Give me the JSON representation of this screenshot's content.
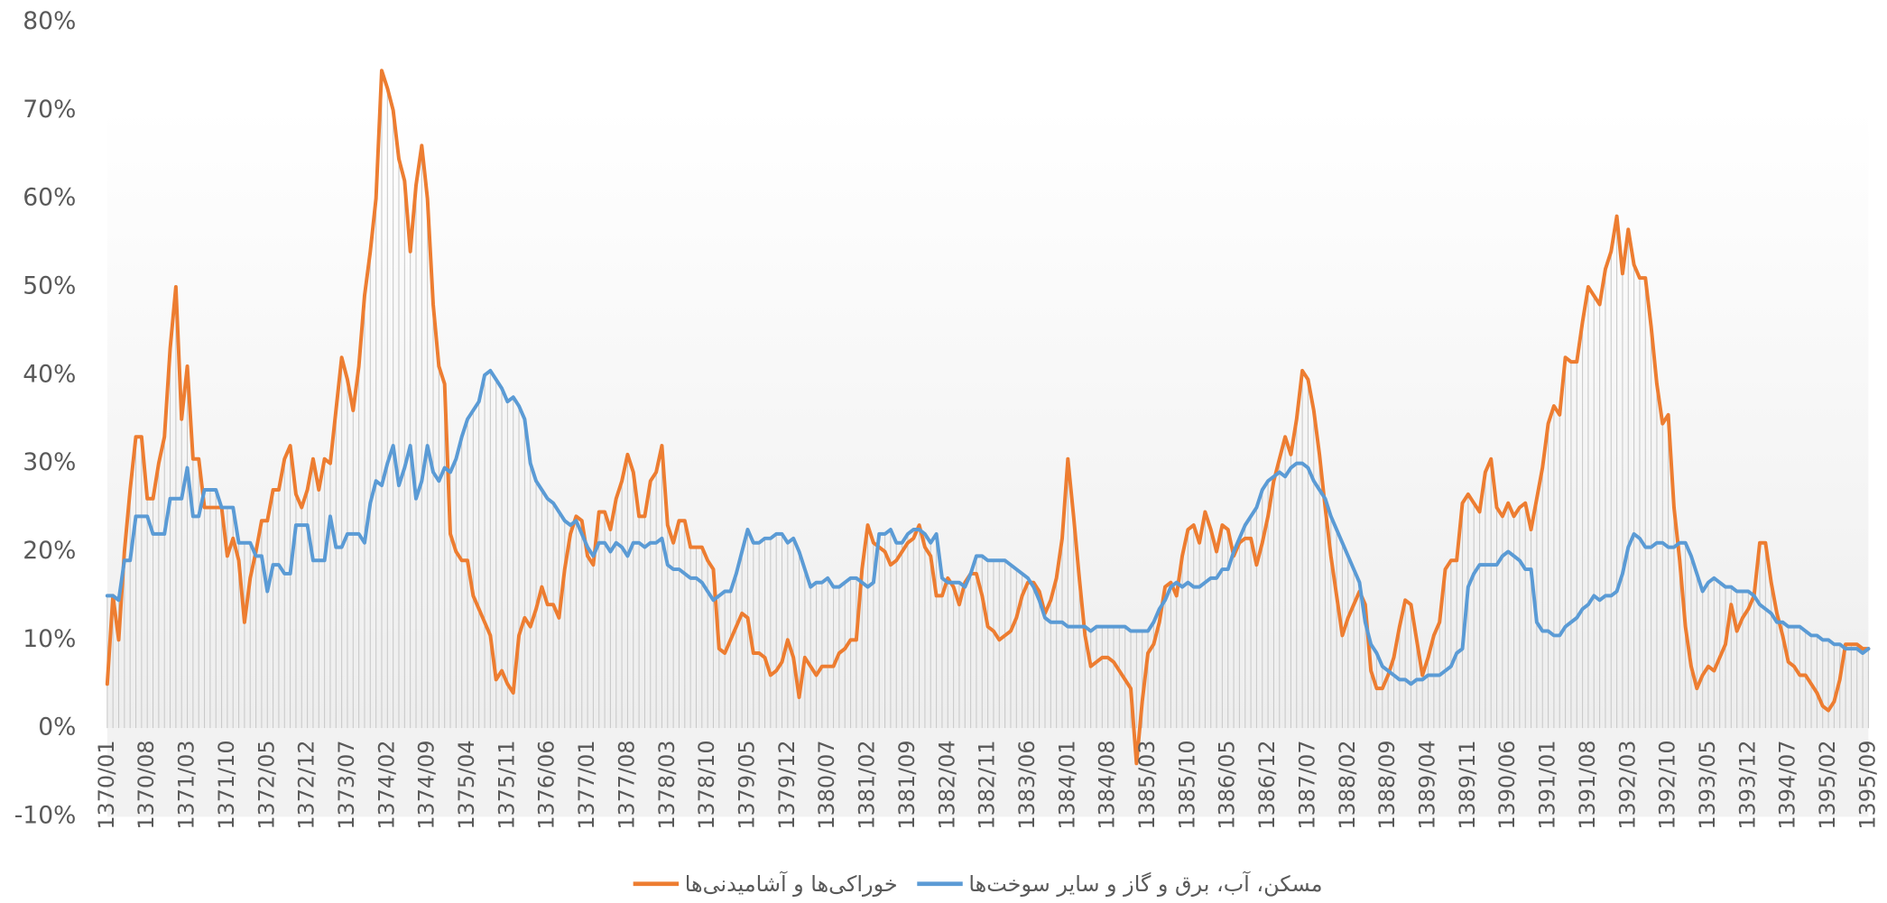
{
  "chart_data": {
    "type": "line",
    "categories": [
      "1370/01",
      null,
      null,
      null,
      null,
      null,
      null,
      "1370/08",
      null,
      null,
      null,
      null,
      null,
      null,
      "1371/03",
      null,
      null,
      null,
      null,
      null,
      null,
      "1371/10",
      null,
      null,
      null,
      null,
      null,
      null,
      "1372/05",
      null,
      null,
      null,
      null,
      null,
      null,
      "1372/12",
      null,
      null,
      null,
      null,
      null,
      null,
      "1373/07",
      null,
      null,
      null,
      null,
      null,
      null,
      "1374/02",
      null,
      null,
      null,
      null,
      null,
      null,
      "1374/09",
      null,
      null,
      null,
      null,
      null,
      null,
      "1375/04",
      null,
      null,
      null,
      null,
      null,
      null,
      "1375/11",
      null,
      null,
      null,
      null,
      null,
      null,
      "1376/06",
      null,
      null,
      null,
      null,
      null,
      null,
      "1377/01",
      null,
      null,
      null,
      null,
      null,
      null,
      "1377/08",
      null,
      null,
      null,
      null,
      null,
      null,
      "1378/03",
      null,
      null,
      null,
      null,
      null,
      null,
      "1378/10",
      null,
      null,
      null,
      null,
      null,
      null,
      "1379/05",
      null,
      null,
      null,
      null,
      null,
      null,
      "1379/12",
      null,
      null,
      null,
      null,
      null,
      null,
      "1380/07",
      null,
      null,
      null,
      null,
      null,
      null,
      "1381/02",
      null,
      null,
      null,
      null,
      null,
      null,
      "1381/09",
      null,
      null,
      null,
      null,
      null,
      null,
      "1382/04",
      null,
      null,
      null,
      null,
      null,
      null,
      "1382/11",
      null,
      null,
      null,
      null,
      null,
      null,
      "1383/06",
      null,
      null,
      null,
      null,
      null,
      null,
      "1384/01",
      null,
      null,
      null,
      null,
      null,
      null,
      "1384/08",
      null,
      null,
      null,
      null,
      null,
      null,
      "1385/03",
      null,
      null,
      null,
      null,
      null,
      null,
      "1385/10",
      null,
      null,
      null,
      null,
      null,
      null,
      "1386/05",
      null,
      null,
      null,
      null,
      null,
      null,
      "1386/12",
      null,
      null,
      null,
      null,
      null,
      null,
      "1387/07",
      null,
      null,
      null,
      null,
      null,
      null,
      "1388/02",
      null,
      null,
      null,
      null,
      null,
      null,
      "1388/09",
      null,
      null,
      null,
      null,
      null,
      null,
      "1389/04",
      null,
      null,
      null,
      null,
      null,
      null,
      "1389/11",
      null,
      null,
      null,
      null,
      null,
      null,
      "1390/06",
      null,
      null,
      null,
      null,
      null,
      null,
      "1391/01",
      null,
      null,
      null,
      null,
      null,
      null,
      "1391/08",
      null,
      null,
      null,
      null,
      null,
      null,
      "1392/03",
      null,
      null,
      null,
      null,
      null,
      null,
      "1392/10",
      null,
      null,
      null,
      null,
      null,
      null,
      "1393/05",
      null,
      null,
      null,
      null,
      null,
      null,
      "1393/12",
      null,
      null,
      null,
      null,
      null,
      null,
      "1394/07",
      null,
      null,
      null,
      null,
      null,
      null,
      "1395/02",
      null,
      null,
      null,
      null,
      null,
      null,
      "1395/09"
    ],
    "series": [
      {
        "name": "خوراکی‌ها و آشامیدنی‌ها",
        "color": "#ed7d31",
        "values": [
          5,
          15,
          10,
          20,
          27,
          33,
          33,
          26,
          26,
          30,
          33,
          43,
          50,
          35,
          41,
          30.5,
          30.5,
          25,
          25,
          25,
          25,
          19.5,
          21.5,
          19,
          12,
          17,
          20,
          23.5,
          23.5,
          27,
          27,
          30.5,
          32,
          26.5,
          25,
          27,
          30.5,
          27,
          30.5,
          30,
          36,
          42,
          39.5,
          36,
          41,
          49,
          54,
          60,
          74.5,
          72.5,
          70,
          64.5,
          62,
          54,
          61.5,
          66,
          60,
          48,
          41,
          39,
          22,
          20,
          19,
          19,
          15,
          13.5,
          12,
          10.5,
          5.5,
          6.5,
          5,
          4,
          10.5,
          12.5,
          11.5,
          13.5,
          16,
          14,
          14,
          12.5,
          18,
          22,
          24,
          23.5,
          19.5,
          18.5,
          24.5,
          24.5,
          22.5,
          26,
          28,
          31,
          29,
          24,
          24,
          28,
          29,
          32,
          23,
          21,
          23.5,
          23.5,
          20.5,
          20.5,
          20.5,
          19,
          18,
          9,
          8.5,
          10,
          11.5,
          13,
          12.5,
          8.5,
          8.5,
          8,
          6,
          6.5,
          7.5,
          10,
          8,
          3.5,
          8,
          7,
          6,
          7,
          7,
          7,
          8.5,
          9,
          10,
          10,
          18,
          23,
          21,
          20.5,
          20,
          18.5,
          19,
          20,
          21,
          21.5,
          23,
          20.5,
          19.5,
          15,
          15,
          17,
          16,
          14,
          16.5,
          17.5,
          17.5,
          15,
          11.5,
          11,
          10,
          10.5,
          11,
          12.5,
          15,
          16.5,
          16.5,
          15.5,
          13,
          14.5,
          17,
          21.5,
          30.5,
          24,
          17,
          10.5,
          7,
          7.5,
          8,
          8,
          7.5,
          6.5,
          5.5,
          4.5,
          -4,
          3,
          8.5,
          9.5,
          12,
          16,
          16.5,
          15,
          19.5,
          22.5,
          23,
          21,
          24.5,
          22.5,
          20,
          23,
          22.5,
          19.5,
          21,
          21.5,
          21.5,
          18.5,
          21,
          24,
          28,
          30.5,
          33,
          31,
          35,
          40.5,
          39.5,
          36,
          31,
          25,
          19.5,
          15,
          10.5,
          12.5,
          14,
          15.5,
          14,
          6.5,
          4.5,
          4.5,
          6,
          8,
          11.5,
          14.5,
          14,
          10,
          6,
          8,
          10.5,
          12,
          18,
          19,
          19,
          25.5,
          26.5,
          25.5,
          24.5,
          29,
          30.5,
          25,
          24,
          25.5,
          24,
          25,
          25.5,
          22.5,
          26,
          29.5,
          34.5,
          36.5,
          35.5,
          42,
          41.5,
          41.5,
          46,
          50,
          49,
          48,
          52,
          54,
          58,
          51.5,
          56.5,
          52.5,
          51,
          51,
          45.5,
          39,
          34.5,
          35.5,
          25,
          19,
          11.5,
          7,
          4.5,
          6,
          7,
          6.5,
          8,
          9.5,
          14,
          11,
          12.5,
          13.5,
          15,
          21,
          21,
          16.5,
          13,
          10.5,
          7.5,
          7,
          6,
          6,
          5,
          4,
          2.5,
          2,
          3,
          5.5,
          9.5,
          9.5,
          9.5,
          9,
          9
        ]
      },
      {
        "name": "مسکن، آب، برق و گاز و سایر سوخت‌ها",
        "color": "#5b9bd5",
        "values": [
          15,
          15,
          14.5,
          19,
          19,
          24,
          24,
          24,
          22,
          22,
          22,
          26,
          26,
          26,
          29.5,
          24,
          24,
          27,
          27,
          27,
          25,
          25,
          25,
          21,
          21,
          21,
          19.5,
          19.5,
          15.5,
          18.5,
          18.5,
          17.5,
          17.5,
          23,
          23,
          23,
          19,
          19,
          19,
          24,
          20.5,
          20.5,
          22,
          22,
          22,
          21,
          25.5,
          28,
          27.5,
          30,
          32,
          27.5,
          29.5,
          32,
          26,
          28,
          32,
          29,
          28,
          29.5,
          29,
          30.5,
          33,
          35,
          36,
          37,
          40,
          40.5,
          39.5,
          38.5,
          37,
          37.5,
          36.5,
          35,
          30,
          28,
          27,
          26,
          25.5,
          24.5,
          23.5,
          23,
          23.5,
          22,
          20.5,
          19.5,
          21,
          21,
          20,
          21,
          20.5,
          19.5,
          21,
          21,
          20.5,
          21,
          21,
          21.5,
          18.5,
          18,
          18,
          17.5,
          17,
          17,
          16.5,
          15.5,
          14.5,
          15,
          15.5,
          15.5,
          17.5,
          20,
          22.5,
          21,
          21,
          21.5,
          21.5,
          22,
          22,
          21,
          21.5,
          20,
          18,
          16,
          16.5,
          16.5,
          17,
          16,
          16,
          16.5,
          17,
          17,
          16.5,
          16,
          16.5,
          22,
          22,
          22.5,
          21,
          21,
          22,
          22.5,
          22.5,
          22,
          21,
          22,
          17,
          16.5,
          16.5,
          16.5,
          16,
          17.5,
          19.5,
          19.5,
          19,
          19,
          19,
          19,
          18.5,
          18,
          17.5,
          17,
          16,
          14.5,
          12.5,
          12,
          12,
          12,
          11.5,
          11.5,
          11.5,
          11.5,
          11,
          11.5,
          11.5,
          11.5,
          11.5,
          11.5,
          11.5,
          11,
          11,
          11,
          11,
          12,
          13.5,
          14.5,
          16,
          16.5,
          16,
          16.5,
          16,
          16,
          16.5,
          17,
          17,
          18,
          18,
          20,
          21.5,
          23,
          24,
          25,
          27,
          28,
          28.5,
          29,
          28.5,
          29.5,
          30,
          30,
          29.5,
          28,
          27,
          26,
          24,
          22.5,
          21,
          19.5,
          18,
          16.5,
          12,
          9.5,
          8.5,
          7,
          6.5,
          6,
          5.5,
          5.5,
          5,
          5.5,
          5.5,
          6,
          6,
          6,
          6.5,
          7,
          8.5,
          9,
          16,
          17.5,
          18.5,
          18.5,
          18.5,
          18.5,
          19.5,
          20,
          19.5,
          19,
          18,
          18,
          12,
          11,
          11,
          10.5,
          10.5,
          11.5,
          12,
          12.5,
          13.5,
          14,
          15,
          14.5,
          15,
          15,
          15.5,
          17.5,
          20.5,
          22,
          21.5,
          20.5,
          20.5,
          21,
          21,
          20.5,
          20.5,
          21,
          21,
          19.5,
          17.5,
          15.5,
          16.5,
          17,
          16.5,
          16,
          16,
          15.5,
          15.5,
          15.5,
          15,
          14,
          13.5,
          13,
          12,
          12,
          11.5,
          11.5,
          11.5,
          11,
          10.5,
          10.5,
          10,
          10,
          9.5,
          9.5,
          9,
          9,
          9,
          8.5,
          9
        ]
      }
    ],
    "ylim": [
      -10,
      80
    ],
    "yticks": [
      {
        "value": -10,
        "label": "-10%"
      },
      {
        "value": 0,
        "label": "0%"
      },
      {
        "value": 10,
        "label": "10%"
      },
      {
        "value": 20,
        "label": "20%"
      },
      {
        "value": 30,
        "label": "30%"
      },
      {
        "value": 40,
        "label": "40%"
      },
      {
        "value": 50,
        "label": "50%"
      },
      {
        "value": 60,
        "label": "60%"
      },
      {
        "value": 70,
        "label": "70%"
      },
      {
        "value": 80,
        "label": "80%"
      }
    ]
  }
}
